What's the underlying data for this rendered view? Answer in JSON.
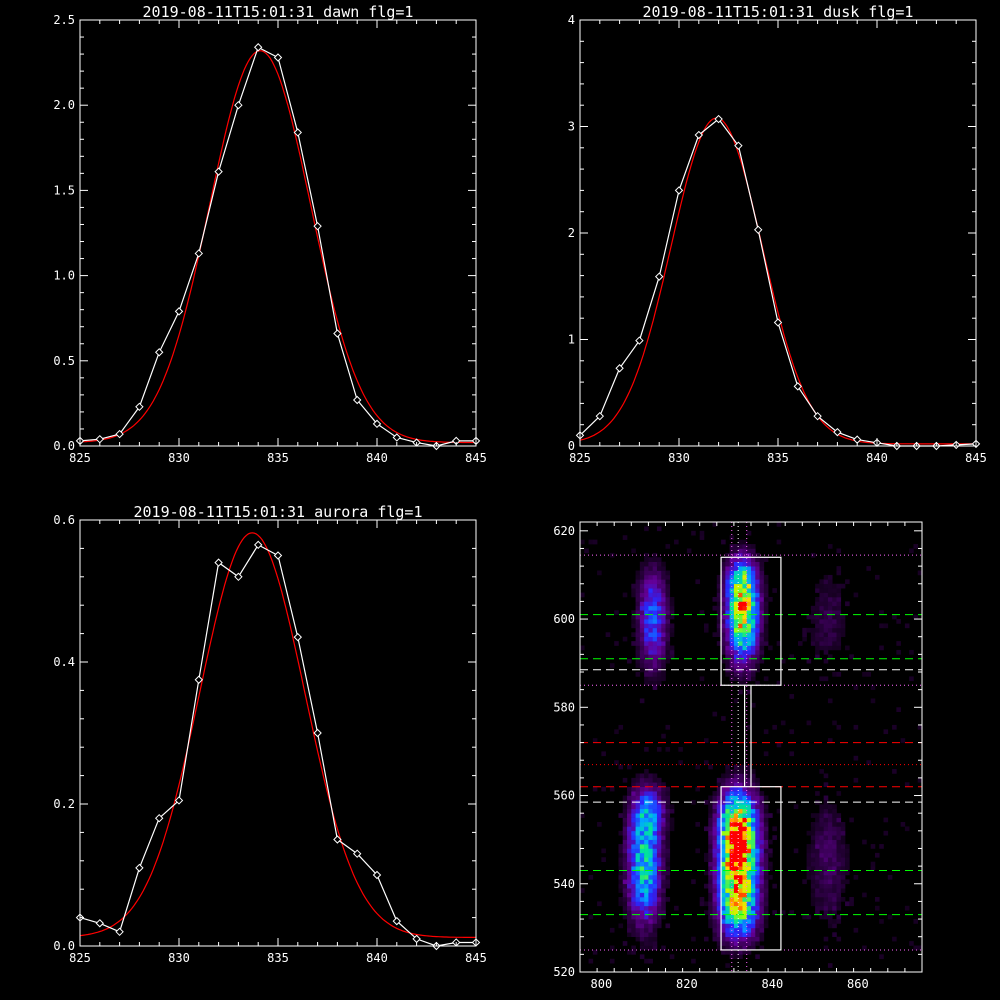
{
  "chart_data": [
    {
      "id": "dawn",
      "type": "line",
      "title": "2019-08-11T15:01:31 dawn flg=1",
      "xlim": [
        825,
        845
      ],
      "ylim": [
        0,
        2.5
      ],
      "xticks": [
        825,
        830,
        835,
        840,
        845
      ],
      "yticks": [
        0.0,
        0.5,
        1.0,
        1.5,
        2.0,
        2.5
      ],
      "ytick_labels": [
        "0.0",
        "0.5",
        "1.0",
        "1.5",
        "2.0",
        "2.5"
      ],
      "series": [
        {
          "color": "#ffffff",
          "marker": "diamond",
          "x": [
            825,
            826,
            827,
            828,
            829,
            830,
            831,
            832,
            833,
            834,
            835,
            836,
            837,
            838,
            839,
            840,
            841,
            842,
            843,
            844,
            845
          ],
          "y": [
            0.03,
            0.04,
            0.07,
            0.23,
            0.55,
            0.79,
            1.13,
            1.61,
            2.0,
            2.34,
            2.28,
            1.84,
            1.29,
            0.66,
            0.27,
            0.13,
            0.05,
            0.02,
            0.0,
            0.03,
            0.03
          ]
        },
        {
          "color": "#ff0000",
          "fit": "gaussian",
          "center": 834.1,
          "amplitude": 2.3,
          "sigma": 2.55,
          "baseline": 0.02
        }
      ]
    },
    {
      "id": "dusk",
      "type": "line",
      "title": "2019-08-11T15:01:31 dusk flg=1",
      "xlim": [
        825,
        845
      ],
      "ylim": [
        0,
        4
      ],
      "xticks": [
        825,
        830,
        835,
        840,
        845
      ],
      "yticks": [
        0,
        1,
        2,
        3,
        4
      ],
      "ytick_labels": [
        "0",
        "1",
        "2",
        "3",
        "4"
      ],
      "series": [
        {
          "color": "#ffffff",
          "marker": "diamond",
          "x": [
            825,
            826,
            827,
            828,
            829,
            830,
            831,
            832,
            833,
            834,
            835,
            836,
            837,
            838,
            839,
            840,
            841,
            842,
            843,
            844,
            845
          ],
          "y": [
            0.1,
            0.28,
            0.73,
            0.99,
            1.59,
            2.4,
            2.92,
            3.07,
            2.82,
            2.03,
            1.16,
            0.56,
            0.28,
            0.13,
            0.06,
            0.03,
            0.0,
            0.0,
            0.0,
            0.01,
            0.02
          ]
        },
        {
          "color": "#ff0000",
          "fit": "gaussian",
          "center": 831.9,
          "amplitude": 3.06,
          "sigma": 2.3,
          "baseline": 0.02
        }
      ]
    },
    {
      "id": "aurora",
      "type": "line",
      "title": "2019-08-11T15:01:31 aurora flg=1",
      "xlim": [
        825,
        845
      ],
      "ylim": [
        0,
        0.6
      ],
      "xticks": [
        825,
        830,
        835,
        840,
        845
      ],
      "yticks": [
        0.0,
        0.2,
        0.4,
        0.6
      ],
      "ytick_labels": [
        "0.0",
        "0.2",
        "0.4",
        "0.6"
      ],
      "series": [
        {
          "color": "#ffffff",
          "marker": "diamond",
          "x": [
            825,
            826,
            827,
            828,
            829,
            830,
            831,
            832,
            833,
            834,
            835,
            836,
            837,
            838,
            839,
            840,
            841,
            842,
            843,
            844,
            845
          ],
          "y": [
            0.04,
            0.032,
            0.02,
            0.11,
            0.18,
            0.205,
            0.375,
            0.54,
            0.52,
            0.565,
            0.55,
            0.435,
            0.3,
            0.15,
            0.13,
            0.1,
            0.035,
            0.01,
            0.0,
            0.005,
            0.005
          ]
        },
        {
          "color": "#ff0000",
          "fit": "gaussian",
          "center": 833.7,
          "amplitude": 0.57,
          "sigma": 2.65,
          "baseline": 0.012
        }
      ]
    },
    {
      "id": "image",
      "type": "heatmap",
      "title": "",
      "xlim": [
        795,
        875
      ],
      "ylim": [
        520,
        622
      ],
      "xticks": [
        800,
        820,
        840,
        860
      ],
      "yticks": [
        520,
        540,
        560,
        580,
        600,
        620
      ],
      "blobs": [
        {
          "x": 832,
          "y": 544,
          "sx": 2.8,
          "sy": 7,
          "amp": 1.0
        },
        {
          "x": 832,
          "y": 554,
          "sx": 2.8,
          "sy": 5,
          "amp": 0.6
        },
        {
          "x": 832,
          "y": 533,
          "sx": 3,
          "sy": 4,
          "amp": 0.35
        },
        {
          "x": 833,
          "y": 600,
          "sx": 2.3,
          "sy": 6,
          "amp": 0.72
        },
        {
          "x": 833,
          "y": 608,
          "sx": 2.3,
          "sy": 4,
          "amp": 0.45
        },
        {
          "x": 810,
          "y": 544,
          "sx": 2.5,
          "sy": 8,
          "amp": 0.5
        },
        {
          "x": 811,
          "y": 556,
          "sx": 2.5,
          "sy": 4,
          "amp": 0.3
        },
        {
          "x": 812,
          "y": 600,
          "sx": 2.2,
          "sy": 7,
          "amp": 0.32
        },
        {
          "x": 853,
          "y": 545,
          "sx": 3,
          "sy": 9,
          "amp": 0.1
        },
        {
          "x": 853,
          "y": 600,
          "sx": 3,
          "sy": 7,
          "amp": 0.07
        }
      ],
      "boxes": [
        {
          "x0": 828,
          "x1": 842,
          "y0": 525,
          "y1": 562
        },
        {
          "x0": 828,
          "x1": 842,
          "y0": 585,
          "y1": 614
        }
      ],
      "connector_x": [
        833.5,
        835
      ],
      "connector_y": [
        562,
        585
      ],
      "hlines": [
        {
          "y": 614.5,
          "color": "#ff66ff",
          "style": "dotted"
        },
        {
          "y": 601,
          "color": "#00ff00",
          "style": "dashed"
        },
        {
          "y": 591,
          "color": "#00ff00",
          "style": "dashed"
        },
        {
          "y": 588.5,
          "color": "#ffffff",
          "style": "dashed"
        },
        {
          "y": 585,
          "color": "#ff66ff",
          "style": "dotted"
        },
        {
          "y": 572,
          "color": "#ff0000",
          "style": "dashed"
        },
        {
          "y": 567,
          "color": "#ff0000",
          "style": "dotted"
        },
        {
          "y": 562,
          "color": "#ff0000",
          "style": "dashed"
        },
        {
          "y": 558.5,
          "color": "#ffffff",
          "style": "dashed"
        },
        {
          "y": 543,
          "color": "#00ff00",
          "style": "dashed"
        },
        {
          "y": 533,
          "color": "#00ff00",
          "style": "dashed"
        },
        {
          "y": 525,
          "color": "#ff66ff",
          "style": "dotted"
        }
      ],
      "vlines": [
        {
          "x": 830.5,
          "color": "#ff66ff",
          "style": "dotted"
        },
        {
          "x": 832,
          "color": "#ffffff",
          "style": "dotted"
        },
        {
          "x": 834,
          "color": "#ff66ff",
          "style": "dotted"
        }
      ]
    }
  ]
}
